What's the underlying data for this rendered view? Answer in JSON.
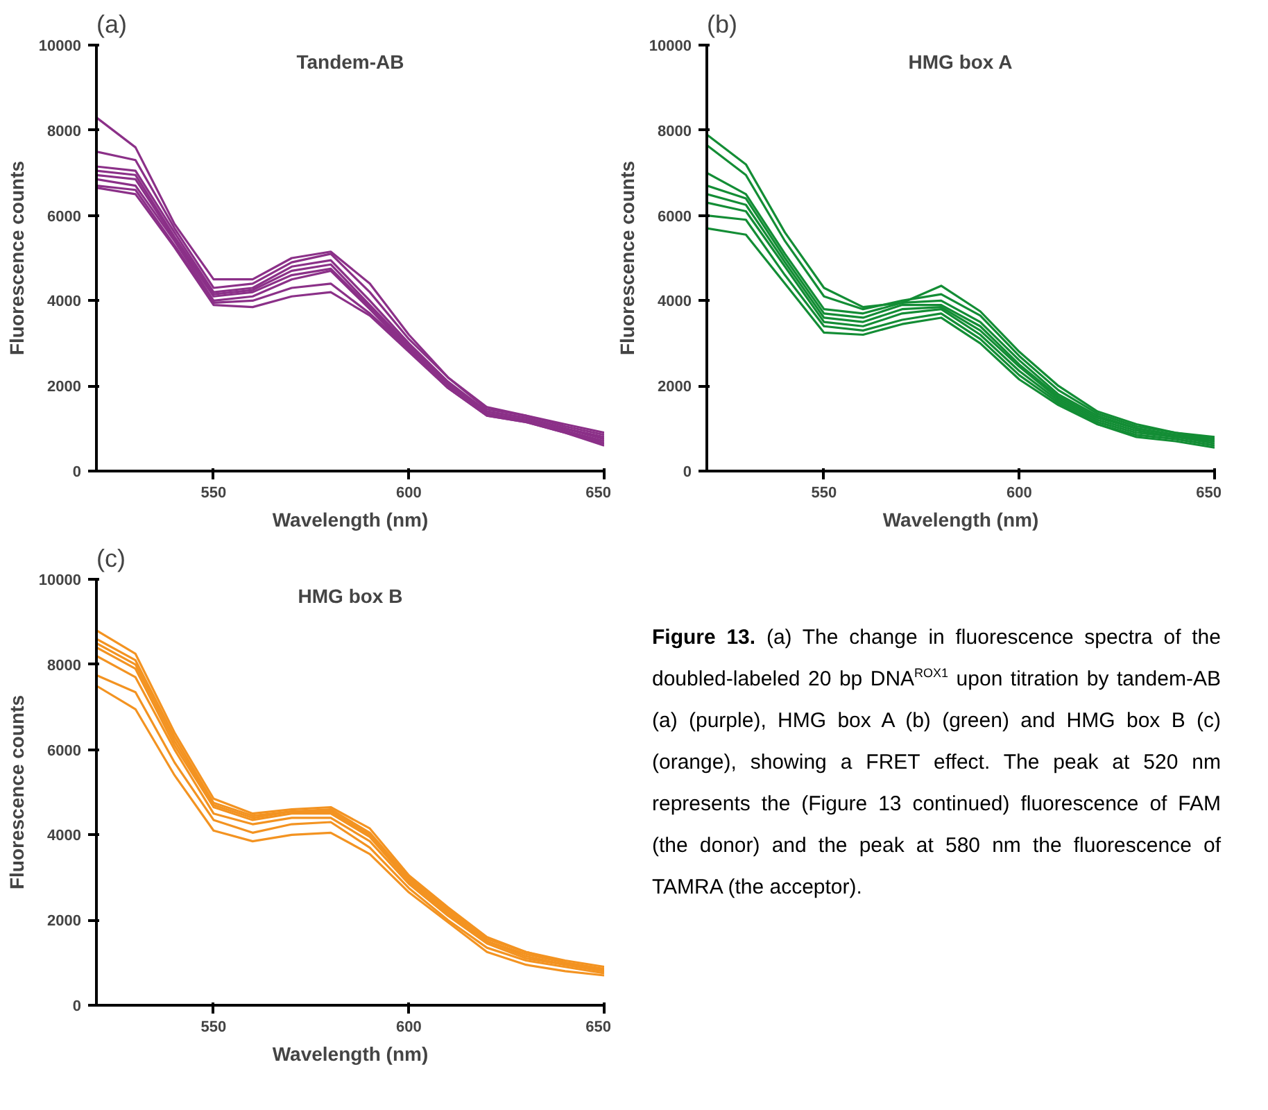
{
  "chart_data": [
    {
      "type": "line",
      "title": "Tandem-AB",
      "xlabel": "Wavelength (nm)",
      "ylabel": "Fluorescence counts",
      "annotations": [
        "(a)"
      ],
      "x": [
        520,
        530,
        540,
        550,
        560,
        570,
        580,
        590,
        600,
        610,
        620,
        630,
        640,
        650
      ],
      "xlim": [
        520,
        650
      ],
      "xticks": [
        550,
        600,
        650
      ],
      "ylim": [
        0,
        10000
      ],
      "yticks": [
        0,
        2000,
        4000,
        6000,
        8000,
        10000
      ],
      "grid": false,
      "marker": "none",
      "line_style": "solid",
      "series": [
        {
          "color": "#8b3088",
          "values": [
            8300,
            7600,
            5800,
            4500,
            4500,
            5000,
            5150,
            4400,
            3200,
            2200,
            1500,
            1300,
            1100,
            900
          ]
        },
        {
          "color": "#8b3088",
          "values": [
            7500,
            7300,
            5700,
            4300,
            4400,
            4900,
            5100,
            4200,
            3100,
            2200,
            1450,
            1300,
            1050,
            850
          ]
        },
        {
          "color": "#8b3088",
          "values": [
            7150,
            7050,
            5600,
            4200,
            4300,
            4800,
            4950,
            4000,
            3000,
            2100,
            1400,
            1250,
            1000,
            800
          ]
        },
        {
          "color": "#8b3088",
          "values": [
            7050,
            6950,
            5500,
            4150,
            4250,
            4700,
            4850,
            3900,
            2950,
            2050,
            1400,
            1250,
            1000,
            750
          ]
        },
        {
          "color": "#8b3088",
          "values": [
            6950,
            6850,
            5450,
            4100,
            4200,
            4600,
            4750,
            3850,
            2900,
            2000,
            1350,
            1200,
            950,
            700
          ]
        },
        {
          "color": "#8b3088",
          "values": [
            6850,
            6700,
            5400,
            4000,
            4100,
            4500,
            4700,
            3800,
            2850,
            2000,
            1350,
            1200,
            950,
            650
          ]
        },
        {
          "color": "#8b3088",
          "values": [
            6700,
            6600,
            5300,
            3950,
            4000,
            4300,
            4400,
            3700,
            2850,
            1950,
            1300,
            1150,
            900,
            600
          ]
        },
        {
          "color": "#8b3088",
          "values": [
            6650,
            6500,
            5250,
            3900,
            3850,
            4100,
            4200,
            3650,
            2800,
            1950,
            1300,
            1150,
            900,
            650
          ]
        }
      ]
    },
    {
      "type": "line",
      "title": "HMG box A",
      "xlabel": "Wavelength (nm)",
      "ylabel": "Fluorescence counts",
      "annotations": [
        "(b)"
      ],
      "x": [
        520,
        530,
        540,
        550,
        560,
        570,
        580,
        590,
        600,
        610,
        620,
        630,
        640,
        650
      ],
      "xlim": [
        520,
        650
      ],
      "xticks": [
        550,
        600,
        650
      ],
      "ylim": [
        0,
        10000
      ],
      "yticks": [
        0,
        2000,
        4000,
        6000,
        8000,
        10000
      ],
      "grid": false,
      "marker": "none",
      "line_style": "solid",
      "series": [
        {
          "color": "#138d35",
          "values": [
            7900,
            7200,
            5600,
            4300,
            3850,
            3950,
            4350,
            3750,
            2800,
            2000,
            1400,
            1100,
            900,
            800
          ]
        },
        {
          "color": "#138d35",
          "values": [
            7650,
            6950,
            5400,
            4100,
            3800,
            4000,
            4150,
            3650,
            2700,
            1900,
            1350,
            1050,
            900,
            750
          ]
        },
        {
          "color": "#138d35",
          "values": [
            7000,
            6500,
            5100,
            3800,
            3700,
            3950,
            4000,
            3500,
            2600,
            1800,
            1300,
            1000,
            850,
            750
          ]
        },
        {
          "color": "#138d35",
          "values": [
            6700,
            6400,
            5000,
            3700,
            3600,
            3900,
            3900,
            3400,
            2500,
            1750,
            1250,
            1000,
            850,
            700
          ]
        },
        {
          "color": "#138d35",
          "values": [
            6500,
            6250,
            4900,
            3600,
            3500,
            3800,
            3850,
            3300,
            2450,
            1700,
            1200,
            950,
            800,
            700
          ]
        },
        {
          "color": "#138d35",
          "values": [
            6300,
            6100,
            4800,
            3500,
            3400,
            3700,
            3800,
            3200,
            2350,
            1650,
            1150,
            900,
            800,
            650
          ]
        },
        {
          "color": "#138d35",
          "values": [
            6000,
            5900,
            4600,
            3400,
            3300,
            3550,
            3700,
            3100,
            2250,
            1600,
            1100,
            850,
            750,
            600
          ]
        },
        {
          "color": "#138d35",
          "values": [
            5700,
            5550,
            4400,
            3250,
            3200,
            3450,
            3600,
            3000,
            2150,
            1550,
            1100,
            800,
            700,
            550
          ]
        }
      ]
    },
    {
      "type": "line",
      "title": "HMG box B",
      "xlabel": "Wavelength (nm)",
      "ylabel": "Fluorescence counts",
      "annotations": [
        "(c)"
      ],
      "x": [
        520,
        530,
        540,
        550,
        560,
        570,
        580,
        590,
        600,
        610,
        620,
        630,
        640,
        650
      ],
      "xlim": [
        520,
        650
      ],
      "xticks": [
        550,
        600,
        650
      ],
      "ylim": [
        0,
        10000
      ],
      "yticks": [
        0,
        2000,
        4000,
        6000,
        8000,
        10000
      ],
      "grid": false,
      "marker": "none",
      "line_style": "solid",
      "series": [
        {
          "color": "#f39321",
          "values": [
            8800,
            8250,
            6400,
            4850,
            4500,
            4600,
            4650,
            4150,
            3050,
            2300,
            1600,
            1250,
            1050,
            900
          ]
        },
        {
          "color": "#f39321",
          "values": [
            8600,
            8100,
            6300,
            4750,
            4450,
            4550,
            4600,
            4050,
            3000,
            2250,
            1550,
            1250,
            1000,
            850
          ]
        },
        {
          "color": "#f39321",
          "values": [
            8500,
            8000,
            6200,
            4700,
            4400,
            4550,
            4550,
            4000,
            2950,
            2200,
            1500,
            1200,
            1000,
            850
          ]
        },
        {
          "color": "#f39321",
          "values": [
            8400,
            7900,
            6100,
            4650,
            4350,
            4500,
            4500,
            3950,
            2900,
            2150,
            1500,
            1150,
            950,
            800
          ]
        },
        {
          "color": "#f39321",
          "values": [
            8200,
            7700,
            6000,
            4500,
            4250,
            4400,
            4400,
            3850,
            2850,
            2100,
            1450,
            1100,
            950,
            800
          ]
        },
        {
          "color": "#f39321",
          "values": [
            7750,
            7350,
            5700,
            4350,
            4050,
            4250,
            4300,
            3700,
            2750,
            2000,
            1350,
            1050,
            900,
            750
          ]
        },
        {
          "color": "#f39321",
          "values": [
            7500,
            6950,
            5400,
            4100,
            3850,
            4000,
            4050,
            3550,
            2650,
            1950,
            1250,
            950,
            800,
            700
          ]
        }
      ]
    },
    {
      "type": "other",
      "annotations": [
        "Figure 13.",
        "(a) The change in fluorescence spectra of the doubled-labeled 20 bp DNA$^{ROX1}$ upon titration by tandem-AB (a) (purple), HMG box A (b) (green) and HMG box B (c) (orange), showing a FRET effect. The peak at 520 nm represents the (Figure 13 continued) fluorescence of FAM (the donor) and the peak at 580 nm the fluorescence of TAMRA (the acceptor)."
      ]
    }
  ]
}
